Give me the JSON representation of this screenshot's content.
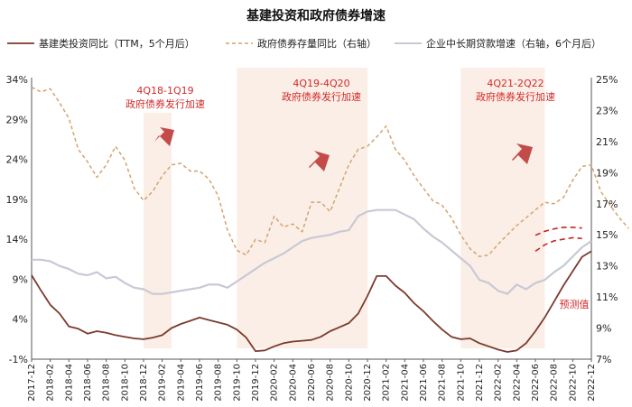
{
  "chart_data": {
    "type": "line",
    "title": "基建投资和政府债券增速",
    "legend": [
      {
        "name": "基建类投资同比（TTM，5个月后）",
        "color": "#7a3b2e",
        "style": "solid"
      },
      {
        "name": "政府债券存量同比（右轴）",
        "color": "#d2a46f",
        "style": "dashed"
      },
      {
        "name": "企业中长期贷款增速（右轴，6个月后）",
        "color": "#c8c9d6",
        "style": "solid"
      }
    ],
    "left_axis": {
      "ticks": [
        "-1%",
        "4%",
        "9%",
        "14%",
        "19%",
        "24%",
        "29%",
        "34%"
      ],
      "min": -1,
      "max": 34
    },
    "right_axis": {
      "ticks": [
        "7%",
        "9%",
        "11%",
        "13%",
        "15%",
        "17%",
        "19%",
        "21%",
        "23%",
        "25%"
      ],
      "min": 7,
      "max": 25
    },
    "x_ticks": [
      "2017-12",
      "2018-02",
      "2018-04",
      "2018-06",
      "2018-08",
      "2018-10",
      "2018-12",
      "2019-02",
      "2019-04",
      "2019-06",
      "2019-08",
      "2019-10",
      "2019-12",
      "2020-02",
      "2020-04",
      "2020-06",
      "2020-08",
      "2020-10",
      "2020-12",
      "2021-02",
      "2021-04",
      "2021-06",
      "2021-08",
      "2021-10",
      "2021-12",
      "2022-02",
      "2022-04",
      "2022-06",
      "2022-08",
      "2022-10",
      "2022-12"
    ],
    "shaded_periods": [
      {
        "from": "2018-12",
        "to": "2019-03"
      },
      {
        "from": "2019-10",
        "to": "2020-12"
      },
      {
        "from": "2021-10",
        "to": "2022-07"
      }
    ],
    "annotations": [
      {
        "text": [
          "4Q18-1Q19",
          "政府债券发行加速"
        ]
      },
      {
        "text": [
          "4Q19-4Q20",
          "政府债券发行加速"
        ]
      },
      {
        "text": [
          "4Q21-2Q22",
          "政府债券发行加速"
        ]
      },
      {
        "text": [
          "预测值"
        ]
      }
    ],
    "series": [
      {
        "name": "基建类投资同比（TTM，5个月后）",
        "axis": "left",
        "values": [
          9.5,
          7.6,
          5.8,
          4.7,
          3.1,
          2.8,
          2.2,
          2.5,
          2.3,
          2.0,
          1.8,
          1.6,
          1.5,
          1.7,
          2.0,
          2.9,
          3.4,
          3.8,
          4.2,
          3.9,
          3.6,
          3.3,
          2.7,
          1.7,
          0.0,
          0.1,
          0.6,
          1.0,
          1.2,
          1.3,
          1.4,
          1.8,
          2.5,
          3.0,
          3.5,
          4.7,
          6.9,
          9.4,
          9.4,
          8.2,
          7.3,
          6.0,
          5.0,
          3.8,
          2.7,
          1.8,
          1.5,
          1.6,
          1.0,
          0.6,
          0.2,
          -0.1,
          0.1,
          1.0,
          2.5,
          4.2,
          6.2,
          8.2,
          10.0,
          11.8,
          12.5
        ]
      },
      {
        "name": "基建类投资同比预测值（a）",
        "axis": "left",
        "x_start": "2022-06",
        "values": [
          14.5,
          15.0,
          15.3,
          15.5,
          15.5,
          15.4
        ]
      },
      {
        "name": "基建类投资同比预测值（b）",
        "axis": "left",
        "x_start": "2022-06",
        "values": [
          12.5,
          13.3,
          13.8,
          14.0,
          14.2,
          14.1
        ]
      },
      {
        "name": "政府债券存量同比（右轴）",
        "axis": "right",
        "values": [
          24.5,
          24.2,
          24.4,
          23.5,
          22.5,
          20.5,
          19.7,
          18.7,
          19.5,
          20.7,
          19.8,
          18.0,
          17.2,
          17.8,
          18.8,
          19.5,
          19.6,
          19.1,
          19.1,
          18.6,
          17.5,
          15.3,
          14.0,
          13.7,
          14.7,
          14.5,
          16.2,
          15.5,
          15.7,
          15.2,
          17.1,
          17.1,
          16.5,
          18.0,
          19.5,
          20.5,
          20.7,
          21.3,
          22.0,
          20.5,
          19.8,
          18.8,
          18.0,
          17.2,
          16.9,
          16.1,
          15.0,
          14.1,
          13.6,
          13.7,
          14.4,
          15.0,
          15.6,
          16.1,
          16.6,
          17.1,
          17.0,
          17.4,
          18.5,
          19.4,
          19.5,
          17.8,
          16.9,
          16.1,
          15.4
        ]
      },
      {
        "name": "企业中长期贷款增速（右轴，6个月后）",
        "axis": "right",
        "values": [
          13.4,
          13.4,
          13.3,
          13.0,
          12.8,
          12.5,
          12.4,
          12.6,
          12.2,
          12.3,
          11.9,
          11.6,
          11.5,
          11.2,
          11.2,
          11.3,
          11.4,
          11.5,
          11.6,
          11.8,
          11.8,
          11.6,
          12.0,
          12.4,
          12.8,
          13.2,
          13.5,
          13.8,
          14.2,
          14.6,
          14.8,
          14.9,
          15.0,
          15.2,
          15.3,
          16.2,
          16.5,
          16.6,
          16.6,
          16.6,
          16.3,
          16.0,
          15.4,
          14.9,
          14.5,
          14.0,
          13.5,
          13.0,
          12.1,
          11.9,
          11.4,
          11.2,
          11.8,
          11.5,
          11.9,
          12.1,
          12.6,
          13.0,
          13.6,
          14.2,
          14.6
        ]
      }
    ],
    "grid": false
  }
}
